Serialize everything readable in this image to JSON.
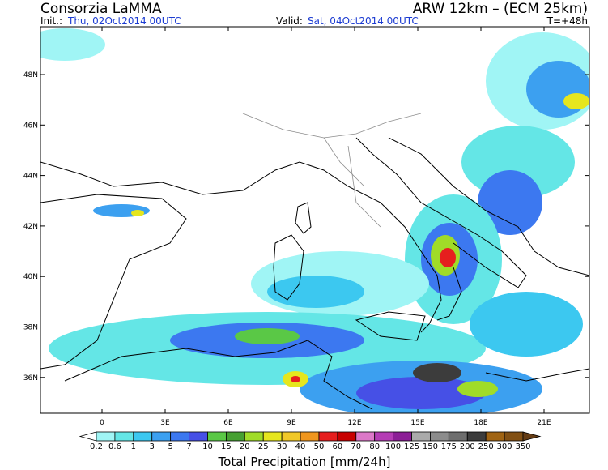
{
  "header": {
    "institution": "Consorzia LaMMA",
    "model": "ARW 12km  – (ECM 25km)",
    "init_label": "Init.:",
    "init": "Thu, 02Oct2014 00UTC",
    "valid_label": "Valid:",
    "valid": "Sat, 04Oct2014 00UTC",
    "lead_time": "T=+48h"
  },
  "map": {
    "lat_labels": [
      "48N",
      "46N",
      "44N",
      "42N",
      "40N",
      "38N",
      "36N"
    ],
    "lon_labels": [
      "0",
      "3E",
      "6E",
      "9E",
      "12E",
      "15E",
      "18E",
      "21E"
    ]
  },
  "legend": {
    "title": "Total Precipitation [mm/24h]",
    "levels": [
      "0.2",
      "0.6",
      "1",
      "3",
      "5",
      "7",
      "10",
      "15",
      "20",
      "25",
      "30",
      "40",
      "50",
      "60",
      "70",
      "80",
      "100",
      "125",
      "150",
      "175",
      "200",
      "250",
      "300",
      "350"
    ],
    "colors": [
      "#ffffff",
      "#a0f5f5",
      "#64e6e6",
      "#3cc8f0",
      "#3ca0f0",
      "#3c78f0",
      "#4650e6",
      "#5ac846",
      "#46a032",
      "#a0dc28",
      "#e6e61e",
      "#f0c828",
      "#f0961e",
      "#e61e1e",
      "#c80000",
      "#dc78c8",
      "#b43cb4",
      "#8c1e96",
      "#aaaaaa",
      "#8c8c8c",
      "#6e6e6e",
      "#3c3c3c",
      "#a06414",
      "#825014",
      "#643c14"
    ]
  }
}
